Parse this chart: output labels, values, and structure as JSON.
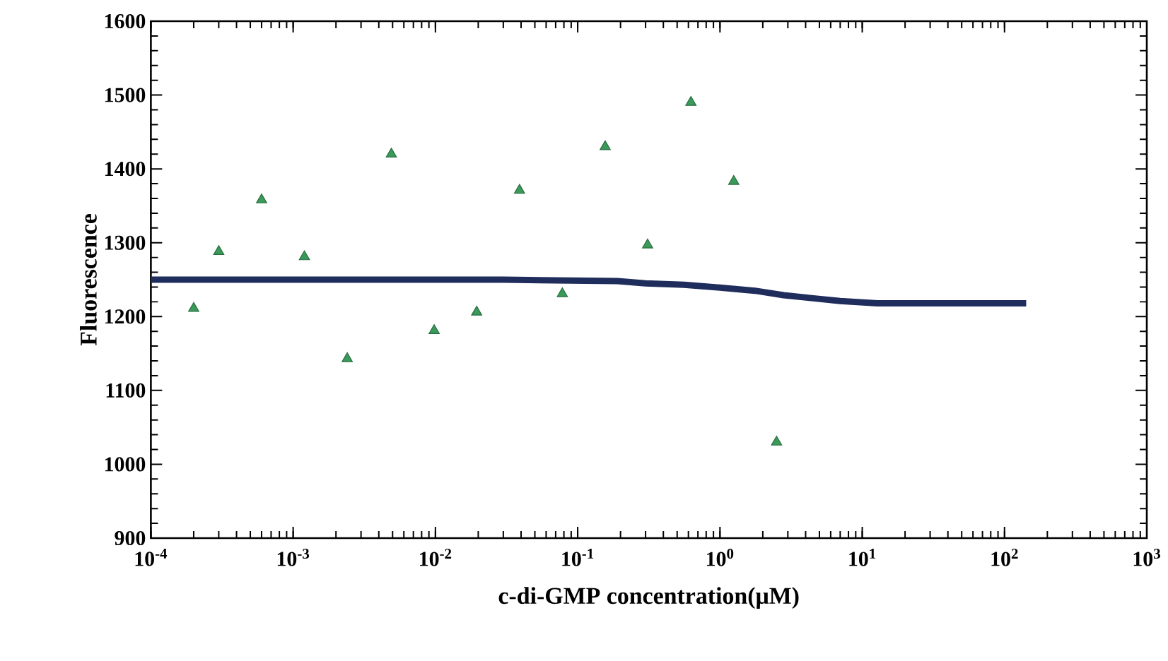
{
  "chart_data": {
    "type": "scatter",
    "xlabel": "c-di-GMP  concentration(μM)",
    "ylabel": "Fluorescence",
    "log": "x",
    "xlim": [
      0.0001,
      1000
    ],
    "ylim": [
      900,
      1600
    ],
    "xticks": [
      {
        "value": 0.0001,
        "label": "10$^{-4}$"
      },
      {
        "value": 0.001,
        "label": "10$^{-3}$"
      },
      {
        "value": 0.01,
        "label": "10$^{-2}$"
      },
      {
        "value": 0.1,
        "label": "10$^{-1}$"
      },
      {
        "value": 1,
        "label": "10$^{0}$"
      },
      {
        "value": 10,
        "label": "10$^{1}$"
      },
      {
        "value": 100,
        "label": "10$^{2}$"
      },
      {
        "value": 1000,
        "label": "10$^{3}$"
      }
    ],
    "yticks": [
      900,
      1000,
      1100,
      1200,
      1300,
      1400,
      1500,
      1600
    ],
    "series": [
      {
        "type": "line",
        "color": "#1f2d5c",
        "marker": "none",
        "x": [
          0.0001,
          0.03,
          0.19,
          0.3,
          0.56,
          1.03,
          1.76,
          2.8,
          4.4,
          7,
          12.8,
          142
        ],
        "values": [
          1250,
          1250,
          1248,
          1245,
          1243,
          1239,
          1235,
          1229,
          1225,
          1221,
          1218,
          1218
        ]
      },
      {
        "color": "#3a9a5a",
        "marker": "triangle",
        "x": [
          0.0002,
          0.0003,
          0.0006,
          0.0012,
          0.0024,
          0.0049,
          0.0098,
          0.0195,
          0.039,
          0.078,
          0.156,
          0.31,
          0.625,
          1.25,
          2.5
        ],
        "values": [
          1211,
          1288,
          1358,
          1281,
          1143,
          1420,
          1181,
          1206,
          1371,
          1231,
          1430,
          1297,
          1490,
          1383,
          1030
        ]
      }
    ]
  }
}
